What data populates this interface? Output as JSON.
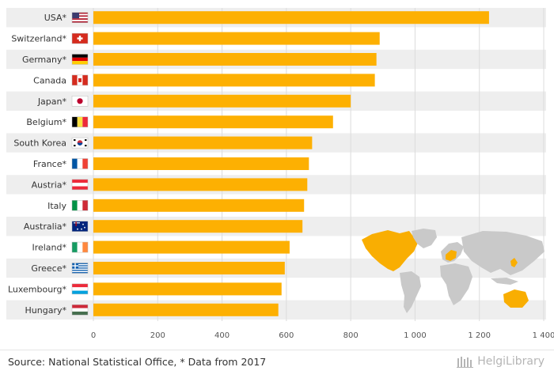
{
  "chart_data": {
    "type": "bar",
    "orientation": "horizontal",
    "categories": [
      "USA*",
      "Switzerland*",
      "Germany*",
      "Canada",
      "Japan*",
      "Belgium*",
      "South Korea",
      "France*",
      "Austria*",
      "Italy",
      "Australia*",
      "Ireland*",
      "Greece*",
      "Luxembourg*",
      "Hungary*"
    ],
    "values": [
      1230,
      890,
      880,
      875,
      800,
      745,
      680,
      670,
      665,
      655,
      650,
      610,
      595,
      585,
      575
    ],
    "xlim": [
      0,
      1400
    ],
    "xticks": [
      0,
      200,
      400,
      600,
      800,
      1000,
      1200,
      1400
    ],
    "xtick_labels": [
      "0",
      "200",
      "400",
      "600",
      "800",
      "1 000",
      "1 200",
      "1 400"
    ],
    "bar_color": "#FDB002",
    "row_band_color": "#eeeeee",
    "flags": [
      "usa-flag",
      "switzerland-flag",
      "germany-flag",
      "canada-flag",
      "japan-flag",
      "belgium-flag",
      "south-korea-flag",
      "france-flag",
      "austria-flag",
      "italy-flag",
      "australia-flag",
      "ireland-flag",
      "greece-flag",
      "luxembourg-flag",
      "hungary-flag"
    ],
    "grid": true,
    "legend": "none"
  },
  "footer": {
    "source": "Source: National Statistical Office, * Data from 2017",
    "brand": "HelgiLibrary"
  }
}
